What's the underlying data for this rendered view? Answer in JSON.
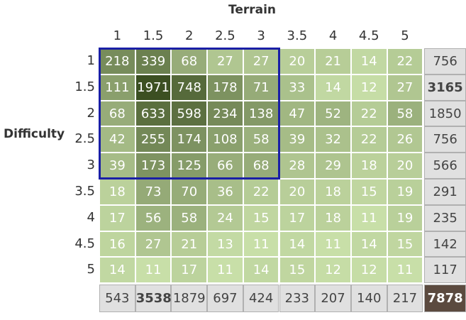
{
  "chart_data": {
    "type": "heatmap",
    "xlabel": "Terrain",
    "ylabel": "Difficulty",
    "x_categories": [
      "1",
      "1.5",
      "2",
      "2.5",
      "3",
      "3.5",
      "4",
      "4.5",
      "5"
    ],
    "y_categories": [
      "1",
      "1.5",
      "2",
      "2.5",
      "3",
      "3.5",
      "4",
      "4.5",
      "5"
    ],
    "values": [
      [
        218,
        339,
        68,
        27,
        27,
        20,
        21,
        14,
        22
      ],
      [
        111,
        1971,
        748,
        178,
        71,
        33,
        14,
        12,
        27
      ],
      [
        68,
        633,
        598,
        234,
        138,
        47,
        52,
        22,
        58
      ],
      [
        42,
        255,
        174,
        108,
        58,
        39,
        32,
        22,
        26
      ],
      [
        39,
        173,
        125,
        66,
        68,
        28,
        29,
        18,
        20
      ],
      [
        18,
        73,
        70,
        36,
        22,
        20,
        18,
        15,
        19
      ],
      [
        17,
        56,
        58,
        24,
        15,
        17,
        18,
        11,
        19
      ],
      [
        16,
        27,
        21,
        13,
        11,
        14,
        11,
        14,
        15
      ],
      [
        14,
        11,
        17,
        11,
        14,
        15,
        12,
        12,
        11
      ]
    ],
    "row_totals": [
      756,
      3165,
      1850,
      756,
      566,
      291,
      235,
      142,
      117
    ],
    "col_totals": [
      543,
      3538,
      1879,
      697,
      424,
      233,
      207,
      140,
      217
    ],
    "grand_total": 7878,
    "bold_row_total": 3165,
    "bold_col_total": 3538,
    "highlight": {
      "x_from": "1",
      "x_to": "3",
      "y_from": "1",
      "y_to": "3"
    },
    "colors": {
      "low": "#c8dfa8",
      "high": "#3c4f22",
      "total_bg": "#e0e0e0",
      "grand_total_bg": "#5b4a3f",
      "highlight_border": "#1a1fa6",
      "text_light": "#ffffff",
      "text_dark": "#444444"
    }
  }
}
